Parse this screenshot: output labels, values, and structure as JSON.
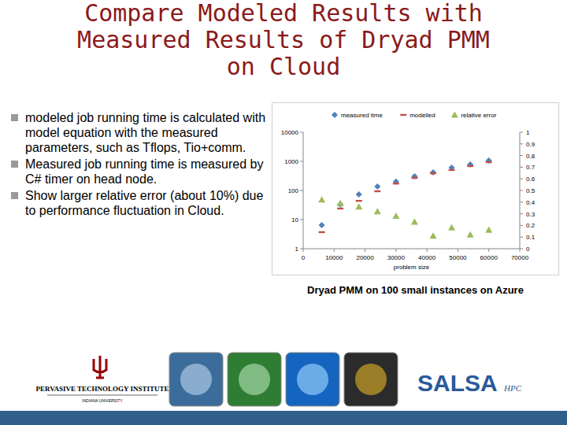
{
  "slide": {
    "title": [
      "Compare Modeled Results with",
      "Measured Results of Dryad PMM",
      "on Cloud"
    ],
    "bullets": [
      "modeled job running time is calculated with model equation with the measured parameters, such as Tflops, Tio+comm.",
      "Measured job running time is measured by C# timer on head node.",
      "Show larger relative error (about 10%) due to performance fluctuation in Cloud."
    ],
    "caption": "Dryad PMM on 100 small instances on Azure",
    "footer": {
      "institute": "PERVASIVE TECHNOLOGY INSTITUTE",
      "university": "INDIANA UNIVERSITY",
      "group": "SALSA",
      "group_suffix": "HPC"
    }
  },
  "chart_data": {
    "type": "scatter",
    "x": [
      6000,
      12000,
      18000,
      24000,
      30000,
      36000,
      42000,
      48000,
      54000,
      60000
    ],
    "xlabel": "problem size",
    "series": [
      {
        "name": "measured time",
        "color": "#4f81bd",
        "marker": "diamond",
        "values": [
          6.5,
          33,
          73,
          137,
          200,
          306,
          417,
          605,
          780,
          1070
        ]
      },
      {
        "name": "modelled",
        "color": "#c0504d",
        "marker": "dash",
        "values": [
          3.7,
          24,
          44,
          94,
          173,
          270,
          390,
          505,
          690,
          940
        ]
      },
      {
        "name": "relative error",
        "color": "#9bbb59",
        "marker": "triangle",
        "axis": "y2",
        "values": [
          0.42,
          0.39,
          0.36,
          0.32,
          0.28,
          0.23,
          0.11,
          0.18,
          0.12,
          0.16
        ]
      }
    ],
    "xlim": [
      0,
      70000
    ],
    "xticks": [
      0,
      10000,
      20000,
      30000,
      40000,
      50000,
      60000,
      70000
    ],
    "ylim": [
      1,
      10000
    ],
    "yticks": [
      1,
      10,
      100,
      1000,
      10000
    ],
    "y2lim": [
      0,
      1
    ],
    "y2ticks": [
      0,
      0.1,
      0.2,
      0.3,
      0.4,
      0.5,
      0.6,
      0.7,
      0.8,
      0.9,
      1
    ],
    "log": "y",
    "grid": false,
    "legend": "top"
  }
}
